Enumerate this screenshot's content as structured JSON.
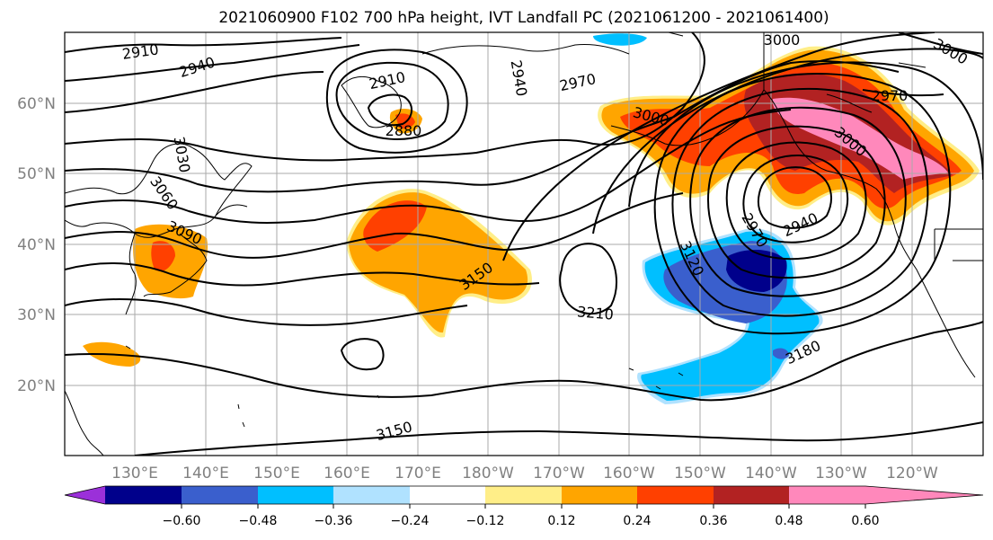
{
  "title": "2021060900 F102 700 hPa height, IVT Landfall PC (2021061200 - 2021061400)",
  "map": {
    "projection": "cylindrical",
    "lon_range_deg_east": [
      120,
      250
    ],
    "lat_range": [
      10,
      70
    ],
    "lat_labels": [
      "20°N",
      "30°N",
      "40°N",
      "50°N",
      "60°N"
    ],
    "lon_labels": [
      "130°E",
      "140°E",
      "150°E",
      "160°E",
      "170°E",
      "180°W",
      "170°W",
      "160°W",
      "150°W",
      "140°W",
      "130°W",
      "120°W"
    ],
    "gridlines": true
  },
  "colorbar": {
    "ticks": [
      "−0.60",
      "−0.48",
      "−0.36",
      "−0.24",
      "−0.12",
      "0.12",
      "0.24",
      "0.36",
      "0.48",
      "0.60"
    ],
    "colors": [
      "#9b30d9",
      "#00008b",
      "#3a5fcd",
      "#00bfff",
      "#b0e2ff",
      "#ffffff",
      "#ffee88",
      "#ffa500",
      "#ff4000",
      "#b22222",
      "#ff88bb"
    ],
    "extend": "both"
  },
  "height_contour_labels": [
    "2910",
    "2940",
    "2910",
    "2880",
    "2940",
    "2970",
    "3000",
    "3000",
    "3030",
    "3060",
    "3090",
    "3150",
    "3000",
    "2970",
    "3000",
    "2970",
    "2940",
    "3120",
    "3210",
    "3180",
    "3150"
  ]
}
